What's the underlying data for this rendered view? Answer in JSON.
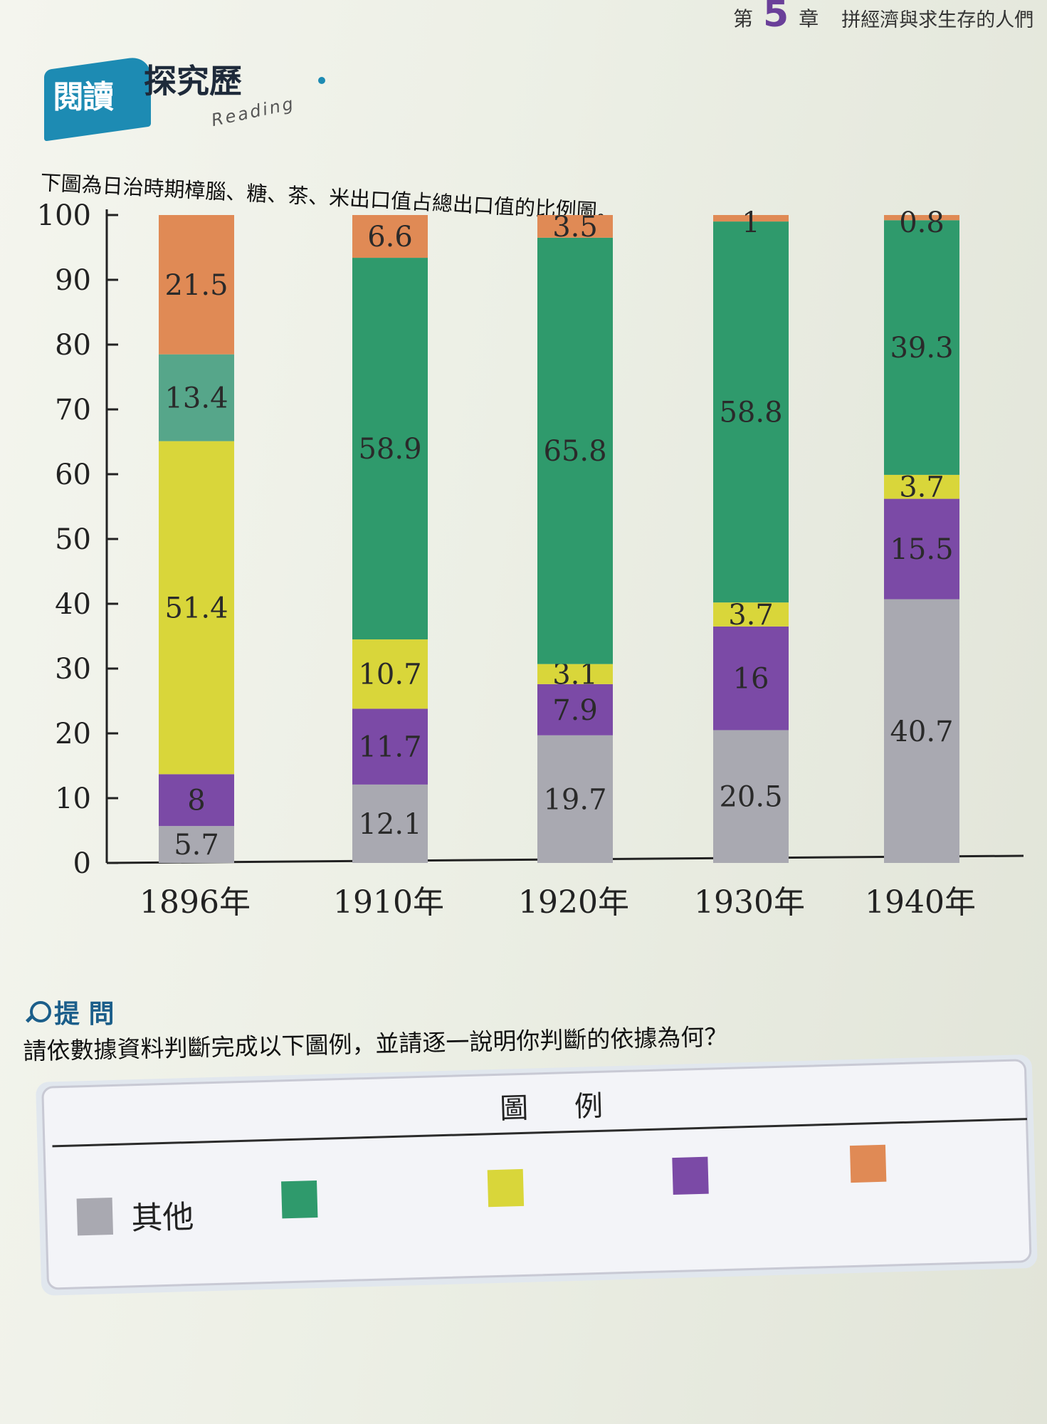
{
  "header": {
    "chapter_prefix": "第",
    "chapter_number": "5",
    "chapter_suffix": "章",
    "chapter_title": "拼經濟與求生存的人們"
  },
  "section": {
    "badge": "閱讀",
    "title": "探究歷",
    "subtitle_en": "Reading"
  },
  "intro": "下圖為日治時期樟腦、糖、茶、米出口值占總出口值的比例圖。",
  "chart_data": {
    "type": "bar",
    "stacked": true,
    "categories": [
      "1896年",
      "1910年",
      "1920年",
      "1930年",
      "1940年"
    ],
    "ylim": [
      0,
      100
    ],
    "yticks": [
      0,
      10,
      20,
      30,
      40,
      50,
      60,
      70,
      80,
      90,
      100
    ],
    "xlabel": "",
    "ylabel": "",
    "grid": false,
    "series": [
      {
        "name": "其他",
        "color": "#a9a9b1",
        "values": [
          5.7,
          12.1,
          19.7,
          20.5,
          40.7
        ]
      },
      {
        "color": "#7b4aa6",
        "values": [
          8,
          11.7,
          7.9,
          16,
          15.5
        ]
      },
      {
        "color": "#d9d63a",
        "values": [
          51.4,
          10.7,
          3.1,
          3.7,
          3.7
        ]
      },
      {
        "color": "#56a68a",
        "values": [
          13.4,
          null,
          null,
          null,
          null
        ]
      },
      {
        "color": "#2f9a6c",
        "values": [
          null,
          58.9,
          65.8,
          58.8,
          39.3
        ]
      },
      {
        "color": "#e08a55",
        "values": [
          21.5,
          6.6,
          3.5,
          1,
          0.8
        ]
      }
    ]
  },
  "qa": {
    "heading": "提 問",
    "question": "請依數據資料判斷完成以下圖例，並請逐一說明你判斷的依據為何？"
  },
  "legend": {
    "title": "圖 例",
    "items": [
      {
        "label": "其他",
        "color": "#a9a9b1"
      },
      {
        "label": "",
        "color": "#2f9a6c"
      },
      {
        "label": "",
        "color": "#d9d63a"
      },
      {
        "label": "",
        "color": "#7b4aa6"
      },
      {
        "label": "",
        "color": "#e08a55"
      }
    ]
  }
}
